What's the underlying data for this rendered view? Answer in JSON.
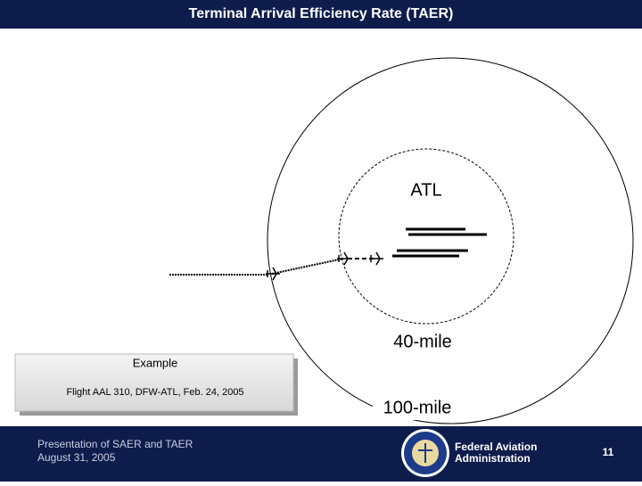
{
  "header": {
    "title": "Terminal Arrival Efficiency Rate (TAER)"
  },
  "diagram": {
    "airport": "ATL",
    "inner_ring": "40-mile",
    "outer_ring": "100-mile"
  },
  "example": {
    "title": "Example",
    "text": "Flight AAL 310, DFW-ATL, Feb. 24, 2005"
  },
  "footer": {
    "presentation": "Presentation of SAER and TAER",
    "date": "August 31, 2005",
    "agency_line1": "Federal Aviation",
    "agency_line2": "Administration",
    "page": "11"
  }
}
